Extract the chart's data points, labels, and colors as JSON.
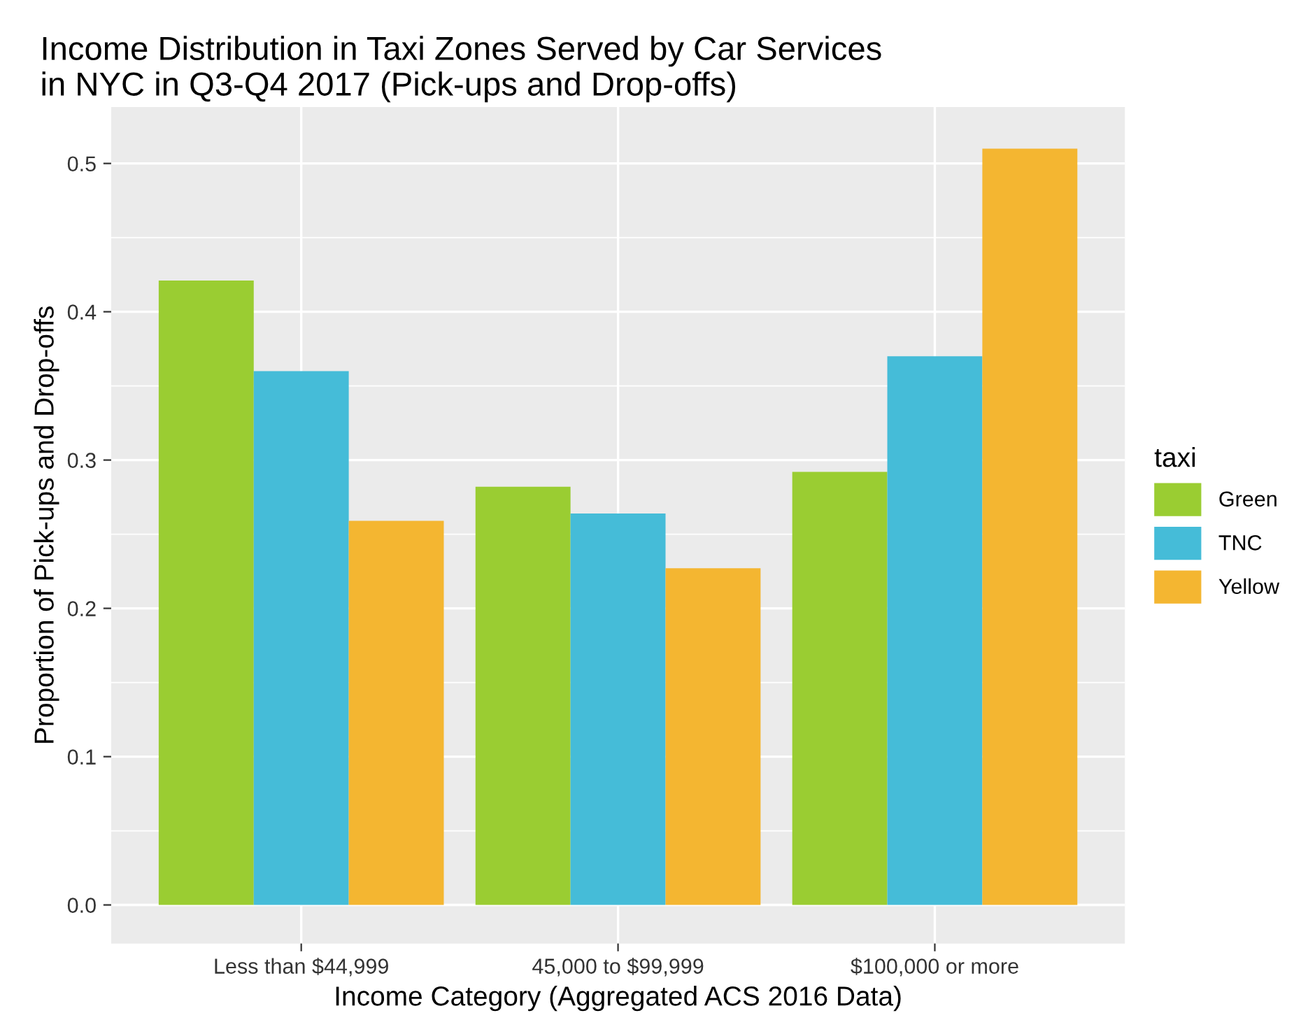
{
  "chart_data": {
    "type": "bar",
    "title": "Income Distribution in Taxi Zones Served by Car Services\nin NYC in Q3-Q4 2017 (Pick-ups and Drop-offs)",
    "xlabel": "Income Category (Aggregated ACS 2016 Data)",
    "ylabel": "Proportion of Pick-ups and Drop-offs",
    "legend_title": "taxi",
    "categories": [
      "Less than $44,999",
      "45,000 to $99,999",
      "$100,000 or more"
    ],
    "series": [
      {
        "name": "Green",
        "color": "#9acd32",
        "values": [
          0.421,
          0.282,
          0.292
        ]
      },
      {
        "name": "TNC",
        "color": "#45bcd8",
        "values": [
          0.36,
          0.264,
          0.37
        ]
      },
      {
        "name": "Yellow",
        "color": "#f4b631",
        "values": [
          0.259,
          0.227,
          0.51
        ]
      }
    ],
    "ylim": [
      -0.026,
      0.538
    ],
    "yticks": [
      {
        "value": 0,
        "label": "0.0"
      },
      0.1,
      0.2,
      0.3,
      0.4,
      0.5
    ],
    "grid": true,
    "legend": "right"
  }
}
